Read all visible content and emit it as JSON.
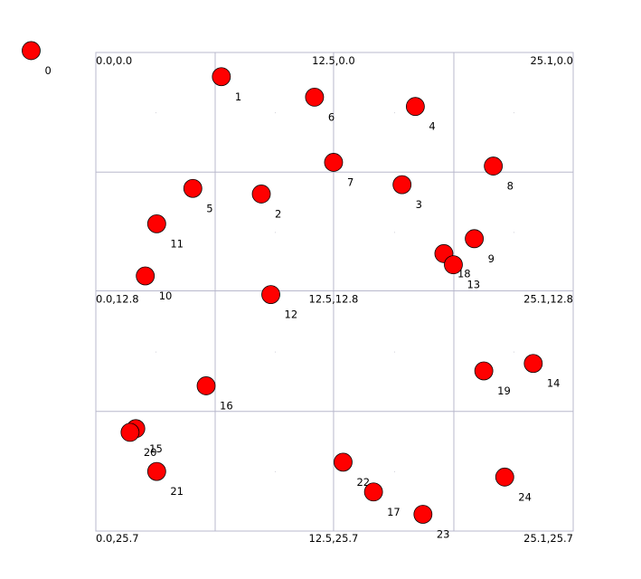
{
  "plot": {
    "x_range": [
      0.0,
      25.1
    ],
    "y_range": [
      0.0,
      25.7
    ],
    "y_inverted": true,
    "gridlines_x": [
      6.275,
      12.5,
      18.825
    ],
    "gridlines_y": [
      6.425,
      12.8,
      19.275
    ]
  },
  "corner_labels": [
    {
      "text": "0.0,0.0",
      "x": 0.0,
      "y": 0.0,
      "anchor": "start"
    },
    {
      "text": "12.5,0.0",
      "x": 12.5,
      "y": 0.0,
      "anchor": "middle"
    },
    {
      "text": "25.1,0.0",
      "x": 25.1,
      "y": 0.0,
      "anchor": "end"
    },
    {
      "text": "0.0,12.8",
      "x": 0.0,
      "y": 12.8,
      "anchor": "start"
    },
    {
      "text": "12.5,12.8",
      "x": 12.5,
      "y": 12.8,
      "anchor": "middle"
    },
    {
      "text": "25.1,12.8",
      "x": 25.1,
      "y": 12.8,
      "anchor": "end"
    },
    {
      "text": "0.0,25.7",
      "x": 0.0,
      "y": 25.7,
      "anchor": "start"
    },
    {
      "text": "12.5,25.7",
      "x": 12.5,
      "y": 25.7,
      "anchor": "middle"
    },
    {
      "text": "25.1,25.7",
      "x": 25.1,
      "y": 25.7,
      "anchor": "end"
    }
  ],
  "points": [
    {
      "id": "0",
      "x": -3.4,
      "y": -0.1
    },
    {
      "id": "1",
      "x": 6.6,
      "y": 1.3
    },
    {
      "id": "6",
      "x": 11.5,
      "y": 2.4
    },
    {
      "id": "4",
      "x": 16.8,
      "y": 2.9
    },
    {
      "id": "7",
      "x": 12.5,
      "y": 5.9
    },
    {
      "id": "8",
      "x": 20.9,
      "y": 6.1
    },
    {
      "id": "3",
      "x": 16.1,
      "y": 7.1
    },
    {
      "id": "5",
      "x": 5.1,
      "y": 7.3
    },
    {
      "id": "2",
      "x": 8.7,
      "y": 7.6
    },
    {
      "id": "11",
      "x": 3.2,
      "y": 9.2
    },
    {
      "id": "9",
      "x": 19.9,
      "y": 10.0
    },
    {
      "id": "18",
      "x": 18.3,
      "y": 10.8
    },
    {
      "id": "13",
      "x": 18.8,
      "y": 11.4
    },
    {
      "id": "10",
      "x": 2.6,
      "y": 12.0
    },
    {
      "id": "12",
      "x": 9.2,
      "y": 13.0
    },
    {
      "id": "14",
      "x": 23.0,
      "y": 16.7
    },
    {
      "id": "19",
      "x": 20.4,
      "y": 17.1
    },
    {
      "id": "16",
      "x": 5.8,
      "y": 17.9
    },
    {
      "id": "15",
      "x": 2.1,
      "y": 20.2
    },
    {
      "id": "20",
      "x": 1.8,
      "y": 20.4
    },
    {
      "id": "22",
      "x": 13.0,
      "y": 22.0
    },
    {
      "id": "21",
      "x": 3.2,
      "y": 22.5
    },
    {
      "id": "24",
      "x": 21.5,
      "y": 22.8
    },
    {
      "id": "17",
      "x": 14.6,
      "y": 23.6
    },
    {
      "id": "23",
      "x": 17.2,
      "y": 24.8
    }
  ]
}
